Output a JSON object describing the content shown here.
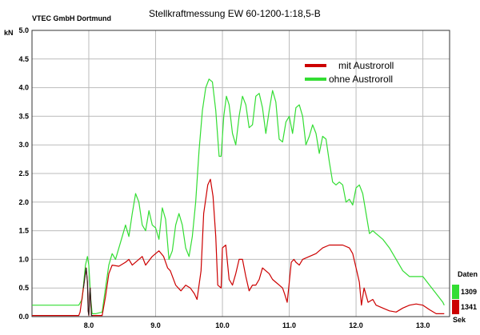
{
  "header": {
    "company": "VTEC GmbH Dortmund"
  },
  "colors": {
    "red": "#cc0000",
    "green": "#33dd33",
    "dark": "#222222",
    "grid": "#bbbbbb"
  },
  "chart_data": {
    "type": "line",
    "title": "Stellkraftmessung EW 60-1200-1:18,5-B",
    "ylabel": "kN",
    "xlabel": "Sek",
    "xlim": [
      7.15,
      13.4
    ],
    "ylim": [
      0,
      5
    ],
    "x_ticks": [
      "8.0",
      "9.0",
      "10.0",
      "11.0",
      "12.0",
      "13.0"
    ],
    "x_tick_values": [
      8,
      9,
      10,
      11,
      12,
      13
    ],
    "y_ticks": [
      "0.0",
      "0.5",
      "1.0",
      "1.5",
      "2.0",
      "2.5",
      "3.0",
      "3.5",
      "4.0",
      "4.5",
      "5.0"
    ],
    "y_tick_values": [
      0,
      0.5,
      1,
      1.5,
      2,
      2.5,
      3,
      3.5,
      4,
      4.5,
      5
    ],
    "grid": true,
    "legend_position": "top-right",
    "series": [
      {
        "name": "mit Austroroll",
        "color": "#cc0000",
        "data": [
          [
            7.15,
            0.02
          ],
          [
            7.85,
            0.02
          ],
          [
            7.87,
            0.08
          ],
          [
            7.92,
            0.5
          ],
          [
            7.96,
            0.85
          ],
          [
            7.98,
            0.6
          ],
          [
            7.99,
            0.1
          ],
          [
            8.0,
            0.02
          ],
          [
            8.02,
            0.5
          ],
          [
            8.04,
            0.02
          ],
          [
            8.06,
            0.02
          ],
          [
            8.2,
            0.02
          ],
          [
            8.25,
            0.35
          ],
          [
            8.3,
            0.75
          ],
          [
            8.35,
            0.9
          ],
          [
            8.45,
            0.88
          ],
          [
            8.55,
            0.95
          ],
          [
            8.6,
            1.0
          ],
          [
            8.65,
            0.9
          ],
          [
            8.75,
            1.0
          ],
          [
            8.8,
            1.05
          ],
          [
            8.85,
            0.9
          ],
          [
            8.95,
            1.05
          ],
          [
            9.05,
            1.15
          ],
          [
            9.12,
            1.05
          ],
          [
            9.18,
            0.85
          ],
          [
            9.22,
            0.8
          ],
          [
            9.3,
            0.55
          ],
          [
            9.38,
            0.45
          ],
          [
            9.45,
            0.55
          ],
          [
            9.52,
            0.5
          ],
          [
            9.58,
            0.4
          ],
          [
            9.62,
            0.3
          ],
          [
            9.68,
            0.8
          ],
          [
            9.72,
            1.8
          ],
          [
            9.78,
            2.3
          ],
          [
            9.82,
            2.4
          ],
          [
            9.86,
            2.1
          ],
          [
            9.9,
            1.4
          ],
          [
            9.93,
            0.55
          ],
          [
            9.98,
            0.5
          ],
          [
            10.0,
            1.2
          ],
          [
            10.05,
            1.25
          ],
          [
            10.1,
            0.65
          ],
          [
            10.15,
            0.55
          ],
          [
            10.2,
            0.75
          ],
          [
            10.25,
            1.0
          ],
          [
            10.3,
            1.0
          ],
          [
            10.35,
            0.7
          ],
          [
            10.4,
            0.45
          ],
          [
            10.45,
            0.55
          ],
          [
            10.5,
            0.55
          ],
          [
            10.55,
            0.65
          ],
          [
            10.6,
            0.85
          ],
          [
            10.7,
            0.75
          ],
          [
            10.75,
            0.65
          ],
          [
            10.8,
            0.6
          ],
          [
            10.85,
            0.55
          ],
          [
            10.9,
            0.5
          ],
          [
            10.93,
            0.4
          ],
          [
            10.97,
            0.25
          ],
          [
            11.0,
            0.6
          ],
          [
            11.03,
            0.95
          ],
          [
            11.07,
            1.0
          ],
          [
            11.1,
            0.95
          ],
          [
            11.15,
            0.9
          ],
          [
            11.2,
            1.0
          ],
          [
            11.3,
            1.05
          ],
          [
            11.4,
            1.1
          ],
          [
            11.5,
            1.2
          ],
          [
            11.6,
            1.25
          ],
          [
            11.7,
            1.25
          ],
          [
            11.8,
            1.25
          ],
          [
            11.9,
            1.2
          ],
          [
            11.95,
            1.1
          ],
          [
            12.0,
            0.85
          ],
          [
            12.05,
            0.6
          ],
          [
            12.08,
            0.2
          ],
          [
            12.12,
            0.5
          ],
          [
            12.18,
            0.25
          ],
          [
            12.25,
            0.3
          ],
          [
            12.3,
            0.2
          ],
          [
            12.4,
            0.15
          ],
          [
            12.5,
            0.1
          ],
          [
            12.6,
            0.08
          ],
          [
            12.7,
            0.15
          ],
          [
            12.8,
            0.2
          ],
          [
            12.9,
            0.22
          ],
          [
            13.0,
            0.2
          ],
          [
            13.1,
            0.12
          ],
          [
            13.2,
            0.05
          ],
          [
            13.32,
            0.05
          ]
        ]
      },
      {
        "name": "ohne Austroroll",
        "color": "#33dd33",
        "data": [
          [
            7.15,
            0.2
          ],
          [
            7.85,
            0.2
          ],
          [
            7.9,
            0.3
          ],
          [
            7.95,
            0.9
          ],
          [
            7.98,
            1.05
          ],
          [
            8.0,
            0.9
          ],
          [
            8.03,
            0.3
          ],
          [
            8.05,
            0.05
          ],
          [
            8.1,
            0.05
          ],
          [
            8.2,
            0.08
          ],
          [
            8.25,
            0.5
          ],
          [
            8.3,
            0.9
          ],
          [
            8.35,
            1.1
          ],
          [
            8.4,
            1.0
          ],
          [
            8.5,
            1.4
          ],
          [
            8.55,
            1.6
          ],
          [
            8.6,
            1.4
          ],
          [
            8.65,
            1.8
          ],
          [
            8.7,
            2.15
          ],
          [
            8.75,
            2.0
          ],
          [
            8.8,
            1.6
          ],
          [
            8.85,
            1.5
          ],
          [
            8.9,
            1.85
          ],
          [
            8.95,
            1.6
          ],
          [
            9.0,
            1.55
          ],
          [
            9.05,
            1.35
          ],
          [
            9.1,
            1.9
          ],
          [
            9.15,
            1.7
          ],
          [
            9.2,
            1.0
          ],
          [
            9.25,
            1.15
          ],
          [
            9.3,
            1.6
          ],
          [
            9.35,
            1.8
          ],
          [
            9.4,
            1.6
          ],
          [
            9.45,
            1.2
          ],
          [
            9.5,
            1.05
          ],
          [
            9.55,
            1.4
          ],
          [
            9.6,
            2.0
          ],
          [
            9.65,
            2.9
          ],
          [
            9.7,
            3.6
          ],
          [
            9.75,
            4.0
          ],
          [
            9.8,
            4.15
          ],
          [
            9.85,
            4.1
          ],
          [
            9.9,
            3.6
          ],
          [
            9.95,
            2.8
          ],
          [
            9.98,
            2.8
          ],
          [
            10.02,
            3.5
          ],
          [
            10.06,
            3.85
          ],
          [
            10.1,
            3.7
          ],
          [
            10.15,
            3.2
          ],
          [
            10.2,
            3.0
          ],
          [
            10.25,
            3.5
          ],
          [
            10.3,
            3.85
          ],
          [
            10.35,
            3.7
          ],
          [
            10.4,
            3.3
          ],
          [
            10.45,
            3.35
          ],
          [
            10.5,
            3.85
          ],
          [
            10.55,
            3.9
          ],
          [
            10.6,
            3.65
          ],
          [
            10.65,
            3.2
          ],
          [
            10.7,
            3.6
          ],
          [
            10.75,
            3.95
          ],
          [
            10.8,
            3.75
          ],
          [
            10.85,
            3.1
          ],
          [
            10.9,
            3.05
          ],
          [
            10.95,
            3.4
          ],
          [
            11.0,
            3.5
          ],
          [
            11.05,
            3.2
          ],
          [
            11.1,
            3.65
          ],
          [
            11.15,
            3.7
          ],
          [
            11.2,
            3.5
          ],
          [
            11.25,
            3.0
          ],
          [
            11.3,
            3.15
          ],
          [
            11.35,
            3.35
          ],
          [
            11.4,
            3.2
          ],
          [
            11.45,
            2.85
          ],
          [
            11.5,
            3.15
          ],
          [
            11.55,
            3.1
          ],
          [
            11.6,
            2.7
          ],
          [
            11.65,
            2.35
          ],
          [
            11.7,
            2.3
          ],
          [
            11.75,
            2.35
          ],
          [
            11.8,
            2.3
          ],
          [
            11.85,
            2.0
          ],
          [
            11.9,
            2.05
          ],
          [
            11.95,
            1.95
          ],
          [
            12.0,
            2.25
          ],
          [
            12.05,
            2.3
          ],
          [
            12.1,
            2.15
          ],
          [
            12.15,
            1.8
          ],
          [
            12.2,
            1.45
          ],
          [
            12.25,
            1.5
          ],
          [
            12.3,
            1.45
          ],
          [
            12.4,
            1.35
          ],
          [
            12.5,
            1.2
          ],
          [
            12.6,
            1.0
          ],
          [
            12.7,
            0.8
          ],
          [
            12.8,
            0.7
          ],
          [
            12.9,
            0.7
          ],
          [
            13.0,
            0.7
          ],
          [
            13.1,
            0.55
          ],
          [
            13.2,
            0.4
          ],
          [
            13.3,
            0.25
          ],
          [
            13.32,
            0.2
          ]
        ]
      }
    ]
  },
  "side_panel": {
    "title": "Daten",
    "green_value": "1309",
    "red_value": "1341",
    "unit_label": "Sek"
  }
}
